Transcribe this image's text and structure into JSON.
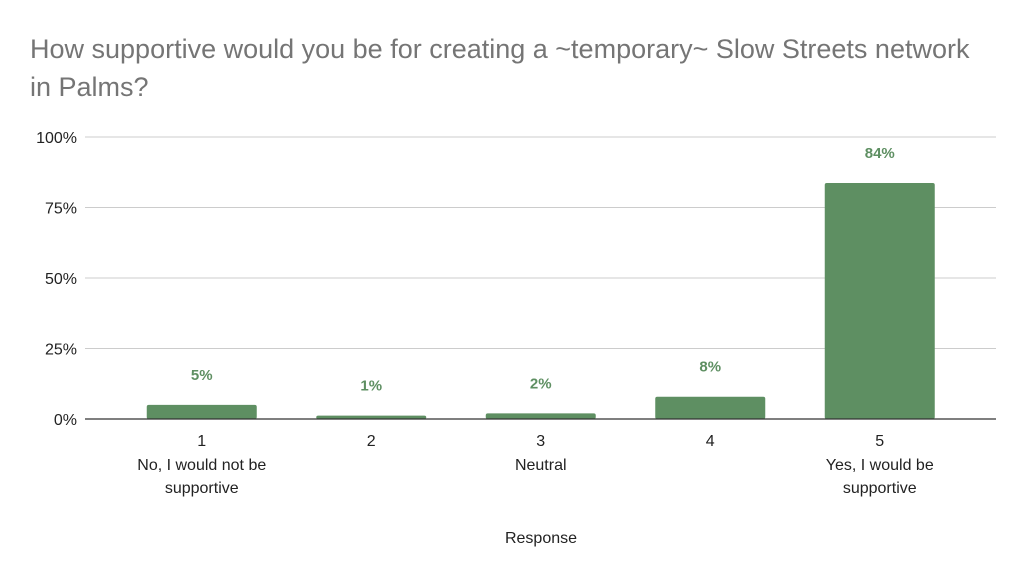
{
  "chart_data": {
    "type": "bar",
    "title": "How supportive would you be for creating a ~temporary~ Slow Streets network in Palms?",
    "xlabel": "Response",
    "ylabel": "",
    "ylim": [
      0,
      100
    ],
    "yticks": [
      0,
      25,
      50,
      75,
      100
    ],
    "ytick_labels": [
      "0%",
      "25%",
      "50%",
      "75%",
      "100%"
    ],
    "grid": true,
    "categories": [
      "1",
      "2",
      "3",
      "4",
      "5"
    ],
    "category_sublabels": [
      [
        "No, I would not be",
        "supportive"
      ],
      [],
      [
        "Neutral"
      ],
      [],
      [
        "Yes, I would be",
        "supportive"
      ]
    ],
    "values": [
      5.0,
      1.2,
      2.0,
      7.9,
      83.7
    ],
    "data_labels": [
      "5%",
      "1%",
      "2%",
      "8%",
      "84%"
    ],
    "bar_color": "#5e8f62",
    "label_color": "#5e8f62",
    "title_color": "#757575"
  }
}
